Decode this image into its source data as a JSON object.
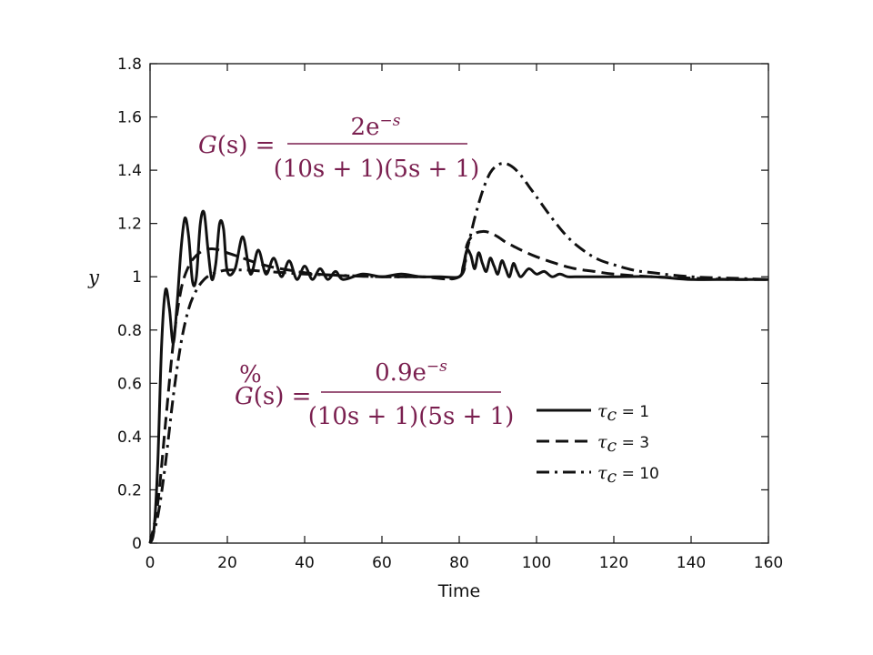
{
  "chart_data": {
    "type": "line",
    "title": "",
    "xlabel": "Time",
    "ylabel": "y",
    "xlim": [
      0,
      160
    ],
    "ylim": [
      0,
      1.8
    ],
    "xticks": [
      "0",
      "20",
      "40",
      "60",
      "80",
      "100",
      "120",
      "140",
      "160"
    ],
    "yticks": [
      "0",
      "0.2",
      "0.4",
      "0.6",
      "0.8",
      "1",
      "1.2",
      "1.4",
      "1.6",
      "1.8"
    ],
    "grid": false,
    "legend": "lower-right",
    "series": [
      {
        "name": "τc = 1",
        "style": "solid",
        "x": [
          0,
          1,
          2,
          3,
          4,
          5,
          6,
          7,
          8,
          9,
          10,
          11,
          12,
          13,
          14,
          15,
          16,
          17,
          18,
          19,
          20,
          22,
          24,
          26,
          28,
          30,
          32,
          34,
          36,
          38,
          40,
          42,
          44,
          46,
          48,
          50,
          55,
          60,
          65,
          70,
          75,
          80,
          81,
          82,
          83,
          84,
          85,
          86,
          87,
          88,
          89,
          90,
          91,
          92,
          93,
          94,
          95,
          96,
          98,
          100,
          102,
          104,
          106,
          108,
          110,
          115,
          120,
          130,
          140,
          150,
          160
        ],
        "y": [
          0,
          0.05,
          0.3,
          0.75,
          0.95,
          0.88,
          0.75,
          0.9,
          1.1,
          1.22,
          1.15,
          0.98,
          1.0,
          1.2,
          1.24,
          1.1,
          0.99,
          1.05,
          1.2,
          1.18,
          1.02,
          1.03,
          1.15,
          1.01,
          1.1,
          1.01,
          1.07,
          1.0,
          1.06,
          0.99,
          1.04,
          0.99,
          1.03,
          0.99,
          1.02,
          0.99,
          1.01,
          1.0,
          1.01,
          1.0,
          1.0,
          1.0,
          1.04,
          1.1,
          1.08,
          1.03,
          1.09,
          1.05,
          1.02,
          1.07,
          1.04,
          1.01,
          1.06,
          1.03,
          1.0,
          1.05,
          1.02,
          1.0,
          1.03,
          1.01,
          1.02,
          1.0,
          1.01,
          1.0,
          1.0,
          1.0,
          1.0,
          1.0,
          0.99,
          0.99,
          0.99
        ]
      },
      {
        "name": "τc = 3",
        "style": "dashed",
        "x": [
          0,
          2,
          4,
          6,
          8,
          10,
          12,
          14,
          16,
          18,
          20,
          24,
          28,
          32,
          36,
          40,
          45,
          50,
          60,
          70,
          80,
          82,
          84,
          86,
          88,
          90,
          92,
          94,
          96,
          100,
          105,
          110,
          115,
          120,
          130,
          140,
          150,
          160
        ],
        "y": [
          0,
          0.15,
          0.45,
          0.75,
          0.95,
          1.04,
          1.08,
          1.1,
          1.105,
          1.1,
          1.09,
          1.07,
          1.05,
          1.035,
          1.025,
          1.015,
          1.008,
          1.004,
          1.0,
          1.0,
          1.0,
          1.12,
          1.16,
          1.17,
          1.165,
          1.15,
          1.13,
          1.115,
          1.1,
          1.075,
          1.05,
          1.03,
          1.02,
          1.01,
          1.0,
          0.995,
          0.99,
          0.99
        ]
      },
      {
        "name": "τc = 10",
        "style": "dashdot",
        "x": [
          0,
          2,
          4,
          6,
          8,
          10,
          12,
          14,
          16,
          18,
          20,
          25,
          30,
          35,
          40,
          50,
          60,
          70,
          80,
          82,
          84,
          86,
          88,
          90,
          92,
          94,
          96,
          98,
          100,
          104,
          108,
          112,
          116,
          120,
          125,
          130,
          140,
          150,
          160
        ],
        "y": [
          0,
          0.1,
          0.3,
          0.55,
          0.75,
          0.88,
          0.95,
          0.99,
          1.01,
          1.02,
          1.025,
          1.025,
          1.02,
          1.015,
          1.01,
          1.005,
          1.0,
          1.0,
          1.0,
          1.1,
          1.22,
          1.32,
          1.39,
          1.42,
          1.425,
          1.41,
          1.38,
          1.34,
          1.3,
          1.22,
          1.15,
          1.1,
          1.065,
          1.045,
          1.025,
          1.015,
          1.0,
          0.995,
          0.99
        ]
      }
    ]
  },
  "legend_items": [
    {
      "tau": "τ",
      "sub": "c",
      "text": " = 1"
    },
    {
      "tau": "τ",
      "sub": "c",
      "text": " = 3"
    },
    {
      "tau": "τ",
      "sub": "c",
      "text": " = 10"
    }
  ],
  "equation1": {
    "lhs_fn": "G",
    "lhs_arg": "(s) =",
    "numerator": "2e",
    "numerator_exp": "−s",
    "denominator": "(10s + 1)(5s + 1)"
  },
  "equation2": {
    "lhs_mark": "%",
    "lhs_fn": "G",
    "lhs_arg": "(s) =",
    "numerator": "0.9e",
    "numerator_exp": "−s",
    "denominator": "(10s + 1)(5s + 1)"
  }
}
